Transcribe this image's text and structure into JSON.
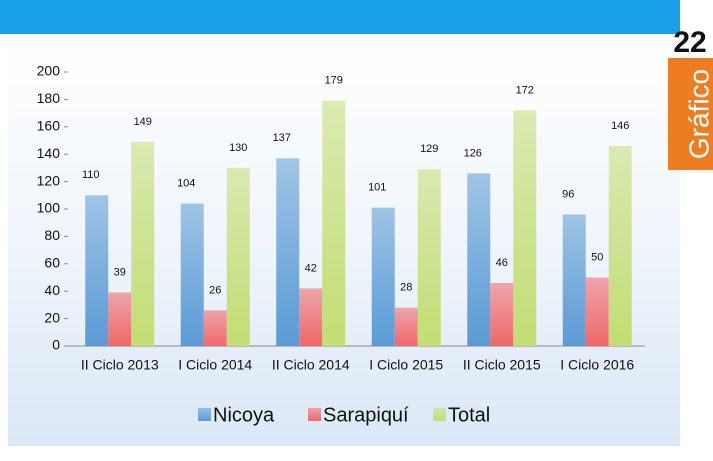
{
  "badge": {
    "number": "22",
    "label": "Gráfico"
  },
  "chart_data": {
    "type": "bar",
    "categories": [
      "II Ciclo 2013",
      "I Ciclo 2014",
      "II Ciclo 2014",
      "I Ciclo 2015",
      "II Ciclo 2015",
      "I Ciclo 2016"
    ],
    "series": [
      {
        "name": "Nicoya",
        "color": "#5b9bd5",
        "values": [
          110,
          104,
          137,
          101,
          126,
          96
        ]
      },
      {
        "name": "Sarapiquí",
        "color": "#f0676a",
        "values": [
          39,
          26,
          42,
          28,
          46,
          50
        ]
      },
      {
        "name": "Total",
        "color": "#c3de73",
        "values": [
          149,
          130,
          179,
          129,
          172,
          146
        ]
      }
    ],
    "ylim": [
      0,
      200
    ],
    "yticks": [
      0,
      20,
      40,
      60,
      80,
      100,
      120,
      140,
      160,
      180,
      200
    ],
    "grid": false,
    "legend": "bottom"
  }
}
